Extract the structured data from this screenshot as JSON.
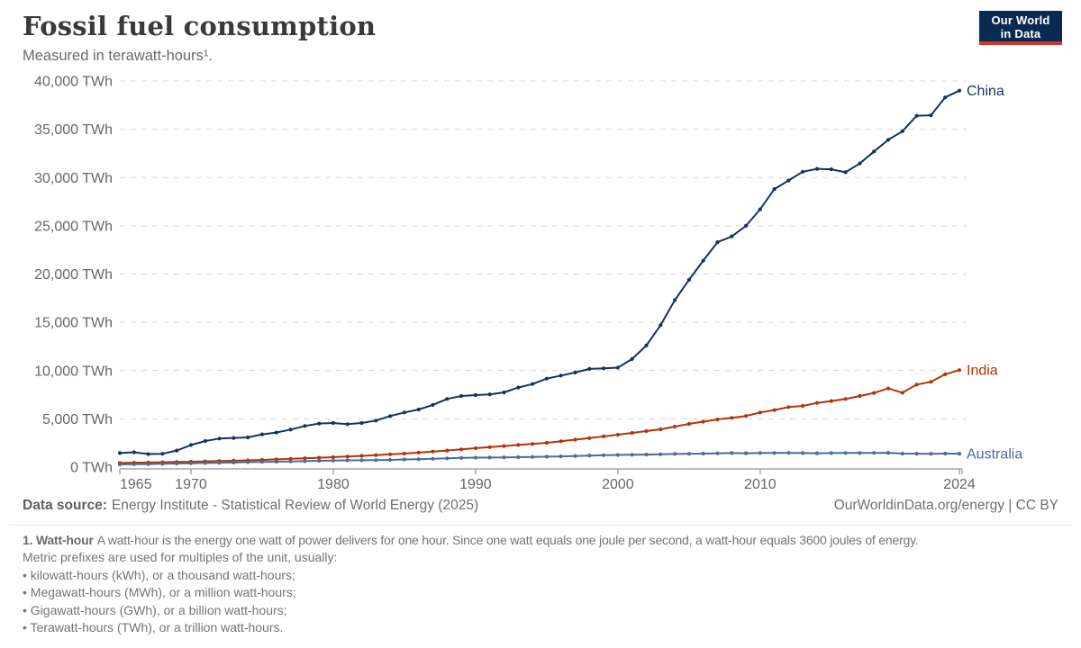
{
  "header": {
    "title": "Fossil fuel consumption",
    "subtitle": "Measured in terawatt-hours¹."
  },
  "logo": {
    "line1": "Our World",
    "line2": "in Data"
  },
  "chart_data": {
    "type": "line",
    "unit": "TWh",
    "xlim": [
      1965,
      2024
    ],
    "ylim": [
      0,
      40000
    ],
    "grid": "dashed-horizontal",
    "legend_position": "end-of-line-labels",
    "yticks": [
      {
        "value": 0,
        "label": "0 TWh"
      },
      {
        "value": 5000,
        "label": "5,000 TWh"
      },
      {
        "value": 10000,
        "label": "10,000 TWh"
      },
      {
        "value": 15000,
        "label": "15,000 TWh"
      },
      {
        "value": 20000,
        "label": "20,000 TWh"
      },
      {
        "value": 25000,
        "label": "25,000 TWh"
      },
      {
        "value": 30000,
        "label": "30,000 TWh"
      },
      {
        "value": 35000,
        "label": "35,000 TWh"
      },
      {
        "value": 40000,
        "label": "40,000 TWh"
      }
    ],
    "xticks": [
      {
        "year": 1965,
        "label": "1965",
        "anchor": "start"
      },
      {
        "year": 1970,
        "label": "1970",
        "anchor": "middle"
      },
      {
        "year": 1980,
        "label": "1980",
        "anchor": "middle"
      },
      {
        "year": 1990,
        "label": "1990",
        "anchor": "middle"
      },
      {
        "year": 2000,
        "label": "2000",
        "anchor": "middle"
      },
      {
        "year": 2010,
        "label": "2010",
        "anchor": "middle"
      },
      {
        "year": 2024,
        "label": "2024",
        "anchor": "middle"
      }
    ],
    "years": [
      1965,
      1966,
      1967,
      1968,
      1969,
      1970,
      1971,
      1972,
      1973,
      1974,
      1975,
      1976,
      1977,
      1978,
      1979,
      1980,
      1981,
      1982,
      1983,
      1984,
      1985,
      1986,
      1987,
      1988,
      1989,
      1990,
      1991,
      1992,
      1993,
      1994,
      1995,
      1996,
      1997,
      1998,
      1999,
      2000,
      2001,
      2002,
      2003,
      2004,
      2005,
      2006,
      2007,
      2008,
      2009,
      2010,
      2011,
      2012,
      2013,
      2014,
      2015,
      2016,
      2017,
      2018,
      2019,
      2020,
      2021,
      2022,
      2023,
      2024
    ],
    "series": [
      {
        "name": "China",
        "color": "#15335f",
        "values": [
          1450,
          1540,
          1350,
          1380,
          1720,
          2280,
          2700,
          2960,
          3020,
          3080,
          3390,
          3580,
          3890,
          4260,
          4510,
          4570,
          4450,
          4570,
          4820,
          5290,
          5660,
          5970,
          6440,
          7060,
          7370,
          7460,
          7530,
          7740,
          8240,
          8610,
          9170,
          9480,
          9800,
          10170,
          10230,
          10300,
          11200,
          12600,
          14700,
          17300,
          19400,
          21400,
          23300,
          23900,
          25000,
          26700,
          28800,
          29700,
          30600,
          30900,
          30850,
          30550,
          31450,
          32700,
          33900,
          34800,
          36400,
          36450,
          38300,
          39000
        ]
      },
      {
        "name": "India",
        "color": "#b13507",
        "values": [
          430,
          455,
          480,
          505,
          530,
          560,
          595,
          630,
          660,
          700,
          750,
          800,
          855,
          910,
          970,
          1030,
          1100,
          1170,
          1240,
          1320,
          1400,
          1500,
          1610,
          1720,
          1840,
          1960,
          2070,
          2180,
          2290,
          2400,
          2520,
          2680,
          2840,
          3000,
          3180,
          3360,
          3540,
          3730,
          3920,
          4200,
          4480,
          4710,
          4940,
          5100,
          5300,
          5660,
          5910,
          6220,
          6340,
          6650,
          6840,
          7060,
          7370,
          7680,
          8150,
          7700,
          8550,
          8830,
          9610,
          10050
        ]
      },
      {
        "name": "Australia",
        "color": "#4c6a9c",
        "values": [
          280,
          300,
          320,
          345,
          375,
          405,
          430,
          450,
          480,
          510,
          540,
          560,
          590,
          620,
          650,
          680,
          700,
          710,
          720,
          750,
          790,
          820,
          860,
          900,
          950,
          980,
          990,
          1010,
          1030,
          1050,
          1080,
          1110,
          1150,
          1190,
          1230,
          1260,
          1280,
          1300,
          1320,
          1360,
          1380,
          1400,
          1430,
          1450,
          1440,
          1450,
          1460,
          1470,
          1450,
          1440,
          1450,
          1460,
          1460,
          1470,
          1480,
          1400,
          1390,
          1380,
          1400,
          1390
        ]
      }
    ],
    "title": "Fossil fuel consumption",
    "ylabel": "",
    "xlabel": ""
  },
  "footer": {
    "datasource_label": "Data source:",
    "datasource": "Energy Institute - Statistical Review of World Energy (2025)",
    "attribution": "OurWorldinData.org/energy | CC BY"
  },
  "footnote": {
    "heading": "1. Watt-hour",
    "text": "A watt-hour is the energy one watt of power delivers for one hour. Since one watt equals one joule per second, a watt-hour equals 3600 joules of energy.",
    "metric_line": "Metric prefixes are used for multiples of the unit, usually:",
    "bullets": [
      "• kilowatt-hours (kWh), or a thousand watt-hours;",
      "• Megawatt-hours (MWh), or a million watt-hours;",
      "• Gigawatt-hours (GWh), or a billion watt-hours;",
      "• Terawatt-hours (TWh), or a trillion watt-hours."
    ]
  }
}
